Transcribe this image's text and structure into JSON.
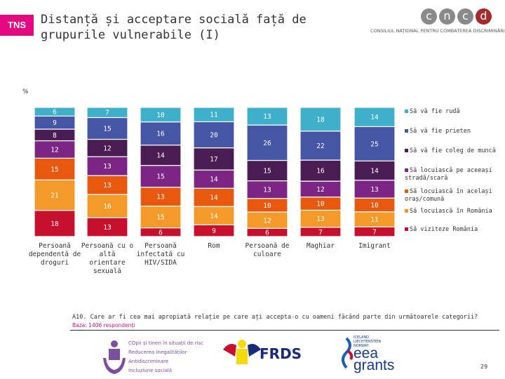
{
  "header": {
    "logo_tns": "TNS",
    "title": "Distanță și acceptare socială față de grupurile vulnerabile (I)",
    "logo_cncd_letters": [
      "c",
      "n",
      "c",
      "d"
    ],
    "logo_cncd_text": "CONSILIUL NAȚIONAL PENTRU COMBATEREA DISCRIMINĂRII"
  },
  "chart_data": {
    "type": "bar",
    "stacked": true,
    "unit": "%",
    "categories": [
      "Persoană dependentă de droguri",
      "Persoană cu o altă orientare sexuală",
      "Persoană infectată cu HIV/SIDA",
      "Rom",
      "Persoană de culoare",
      "Maghiar",
      "Imigrant"
    ],
    "series": [
      {
        "name": "Să vă fie rudă",
        "color": "#3fb0c9",
        "values": [
          6,
          7,
          10,
          11,
          13,
          18,
          14
        ]
      },
      {
        "name": "Să vă fie prieten",
        "color": "#4656a6",
        "values": [
          9,
          15,
          16,
          20,
          26,
          22,
          25
        ]
      },
      {
        "name": "Să vă fie coleg de muncă",
        "color": "#4a1d52",
        "values": [
          8,
          12,
          14,
          17,
          15,
          16,
          14
        ]
      },
      {
        "name": "Să locuiască pe aceeași stradă/scară",
        "color": "#7b2585",
        "values": [
          12,
          13,
          15,
          14,
          13,
          12,
          13
        ]
      },
      {
        "name": "Să locuiască în același oraș/comună",
        "color": "#e8590f",
        "values": [
          15,
          13,
          13,
          14,
          10,
          10,
          10
        ]
      },
      {
        "name": "Să locuiască în România",
        "color": "#f39a28",
        "values": [
          21,
          16,
          15,
          14,
          12,
          13,
          11
        ]
      },
      {
        "name": "Să viziteze România",
        "color": "#c8102e",
        "values": [
          18,
          13,
          6,
          9,
          6,
          7,
          7
        ]
      }
    ],
    "legend": "right"
  },
  "footer": {
    "question": "A10. Care ar fi cea mai apropiată relație pe care ați accepta-o cu oameni făcând parte din următoarele categorii?",
    "base": "Baza: 1406 respondenți",
    "logo1_lines": [
      "COpii și tineri în situații de risc",
      "Reducerea inegalităților",
      "Antidiscriminare",
      "Incluziune socială"
    ],
    "logo_frds": "FRDS",
    "logo_eea_small": "ICELAND LIECHTENSTEIN NORWAY",
    "logo_eea": "eea grants",
    "page": "29"
  }
}
